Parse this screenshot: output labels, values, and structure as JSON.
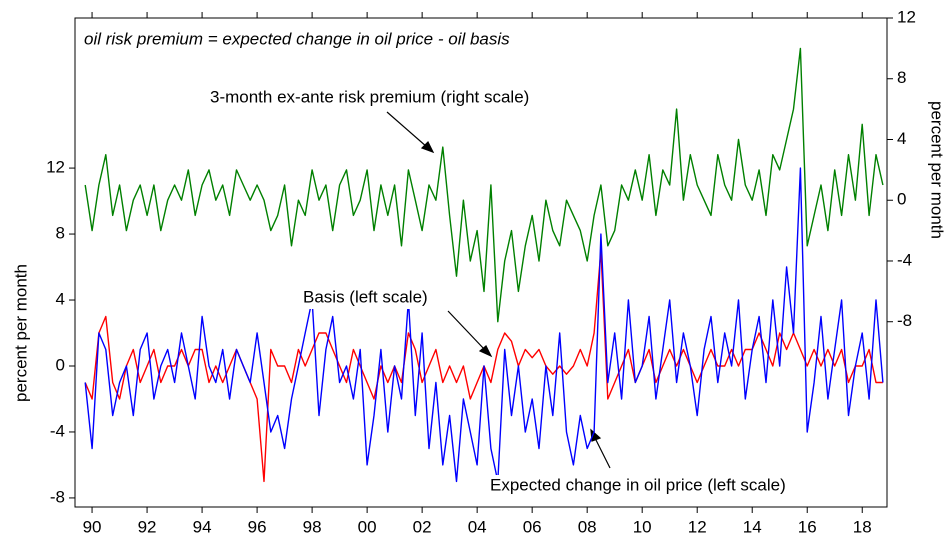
{
  "chart_data": {
    "type": "line",
    "title": "oil risk premium = expected change in oil price - oil basis",
    "ylabel": "percent per month",
    "y2label": "percent per month",
    "annotations": [
      "3-month ex-ante risk premium (right scale)",
      "Basis (left scale)",
      "Expected change in oil price (left scale)"
    ],
    "xlim": [
      1989.38,
      2018.9
    ],
    "xticks": [
      {
        "value": 1990,
        "label": "90"
      },
      {
        "value": 1992,
        "label": "92"
      },
      {
        "value": 1994,
        "label": "94"
      },
      {
        "value": 1996,
        "label": "96"
      },
      {
        "value": 1998,
        "label": "98"
      },
      {
        "value": 2000,
        "label": "00"
      },
      {
        "value": 2002,
        "label": "02"
      },
      {
        "value": 2004,
        "label": "04"
      },
      {
        "value": 2006,
        "label": "06"
      },
      {
        "value": 2008,
        "label": "08"
      },
      {
        "value": 2010,
        "label": "10"
      },
      {
        "value": 2012,
        "label": "12"
      },
      {
        "value": 2014,
        "label": "14"
      },
      {
        "value": 2016,
        "label": "16"
      },
      {
        "value": 2018,
        "label": "18"
      }
    ],
    "ylim": [
      -8.55,
      21.1
    ],
    "yticks": [
      -8,
      -4,
      0,
      4,
      8,
      12
    ],
    "y2lim": [
      -20.2,
      12
    ],
    "y2ticks": [
      -8,
      -4,
      0,
      4,
      8,
      12
    ],
    "x": [
      1989.75,
      1990,
      1990.25,
      1990.5,
      1990.75,
      1991,
      1991.25,
      1991.5,
      1991.75,
      1992,
      1992.25,
      1992.5,
      1992.75,
      1993,
      1993.25,
      1993.5,
      1993.75,
      1994,
      1994.25,
      1994.5,
      1994.75,
      1995,
      1995.25,
      1995.5,
      1995.75,
      1996,
      1996.25,
      1996.5,
      1996.75,
      1997,
      1997.25,
      1997.5,
      1997.75,
      1998,
      1998.25,
      1998.5,
      1998.75,
      1999,
      1999.25,
      1999.5,
      1999.75,
      2000,
      2000.25,
      2000.5,
      2000.75,
      2001,
      2001.25,
      2001.5,
      2001.75,
      2002,
      2002.25,
      2002.5,
      2002.75,
      2003,
      2003.25,
      2003.5,
      2003.75,
      2004,
      2004.25,
      2004.5,
      2004.75,
      2005,
      2005.25,
      2005.5,
      2005.75,
      2006,
      2006.25,
      2006.5,
      2006.75,
      2007,
      2007.25,
      2007.5,
      2007.75,
      2008,
      2008.25,
      2008.5,
      2008.75,
      2009,
      2009.25,
      2009.5,
      2009.75,
      2010,
      2010.25,
      2010.5,
      2010.75,
      2011,
      2011.25,
      2011.5,
      2011.75,
      2012,
      2012.25,
      2012.5,
      2012.75,
      2013,
      2013.25,
      2013.5,
      2013.75,
      2014,
      2014.25,
      2014.5,
      2014.75,
      2015,
      2015.25,
      2015.5,
      2015.75,
      2016,
      2016.25,
      2016.5,
      2016.75,
      2017,
      2017.25,
      2017.5,
      2017.75,
      2018,
      2018.25,
      2018.5,
      2018.75
    ],
    "series": [
      {
        "name": "3-month ex-ante risk premium",
        "color": "#008000",
        "axis": "y2",
        "values": [
          1,
          -2,
          1,
          3,
          -1,
          1,
          -2,
          0,
          1,
          -1,
          1,
          -2,
          0,
          1,
          0,
          2,
          -1,
          1,
          2,
          0,
          1,
          -1,
          2,
          1,
          0,
          1,
          0,
          -2,
          -1,
          1,
          -3,
          0,
          -1,
          2,
          0,
          1,
          -2,
          1,
          2,
          -1,
          0,
          2,
          -2,
          1,
          -1,
          1,
          -3,
          2,
          0,
          -2,
          1,
          0,
          3.5,
          -1,
          -5,
          0,
          -4,
          -2,
          -6,
          1,
          -8,
          -4,
          -2,
          -6,
          -3,
          -1,
          -4,
          0,
          -2,
          -3,
          0,
          -1,
          -2,
          -4,
          -1,
          1,
          -3,
          -2,
          1,
          0,
          2,
          0,
          3,
          -1,
          2,
          1,
          6,
          0,
          3,
          1,
          0,
          -1,
          3,
          1,
          0,
          4,
          1,
          0,
          2,
          -1,
          3,
          2,
          4,
          6,
          10,
          -3,
          -1,
          1,
          -2,
          2,
          -1,
          3,
          0,
          5,
          -1,
          3,
          1
        ]
      },
      {
        "name": "Basis",
        "color": "#ff0000",
        "values": [
          -1,
          -2,
          2,
          3,
          -1,
          -2,
          0,
          1,
          -1,
          0,
          1,
          -1,
          0,
          0,
          1,
          0,
          1,
          1,
          -1,
          0,
          -1,
          0,
          1,
          0,
          -1,
          -2,
          -7,
          1,
          0,
          0,
          -1,
          1,
          0,
          1,
          2,
          2,
          1,
          0,
          -1,
          1,
          0,
          -1,
          -2,
          0,
          -1,
          0,
          -1,
          2,
          1,
          -1,
          0,
          1,
          -1,
          0,
          -1,
          0,
          -2,
          -1,
          0,
          -1,
          1,
          2,
          1.5,
          0,
          1,
          0.5,
          1,
          0,
          -0.5,
          0,
          -0.5,
          0,
          1,
          0,
          2,
          7,
          -2,
          -1,
          0,
          1,
          -1,
          0,
          1,
          -1,
          0,
          1,
          0,
          1,
          0,
          -1,
          0,
          1,
          0,
          0,
          1,
          0,
          1,
          1,
          2,
          1,
          0,
          2,
          1,
          2,
          1,
          0,
          1,
          0,
          1,
          0,
          1,
          -1,
          0,
          0,
          1,
          -1,
          -1
        ]
      },
      {
        "name": "Expected change in oil price",
        "color": "#0000ff",
        "values": [
          -1,
          -5,
          2,
          1,
          -3,
          -1,
          0,
          -3,
          1,
          2,
          -2,
          0,
          1,
          -1,
          2,
          0,
          -2,
          3,
          0,
          -1,
          1,
          -2,
          1,
          0,
          -1,
          2,
          -1,
          -4,
          -3,
          -5,
          -2,
          0,
          2,
          4,
          -3,
          1,
          3,
          -1,
          0,
          -2,
          1,
          -6,
          -3,
          1,
          -4,
          0,
          -2,
          4,
          -3,
          2,
          -5,
          -1,
          -6,
          -3,
          -7,
          -2,
          -4,
          -6,
          0,
          -5,
          -7,
          1,
          -3,
          0,
          -4,
          -2,
          -5,
          0,
          -3,
          2,
          -4,
          -6,
          -3,
          -5,
          -4,
          8,
          -1,
          2,
          -2,
          4,
          -1,
          0,
          3,
          -2,
          1,
          4,
          -1,
          2,
          0,
          -3,
          1,
          3,
          -1,
          2,
          0,
          4,
          -2,
          1,
          3,
          -1,
          4,
          0,
          6,
          2,
          12,
          -4,
          -1,
          3,
          -2,
          1,
          4,
          -3,
          0,
          2,
          -2,
          4,
          -1
        ]
      }
    ]
  }
}
